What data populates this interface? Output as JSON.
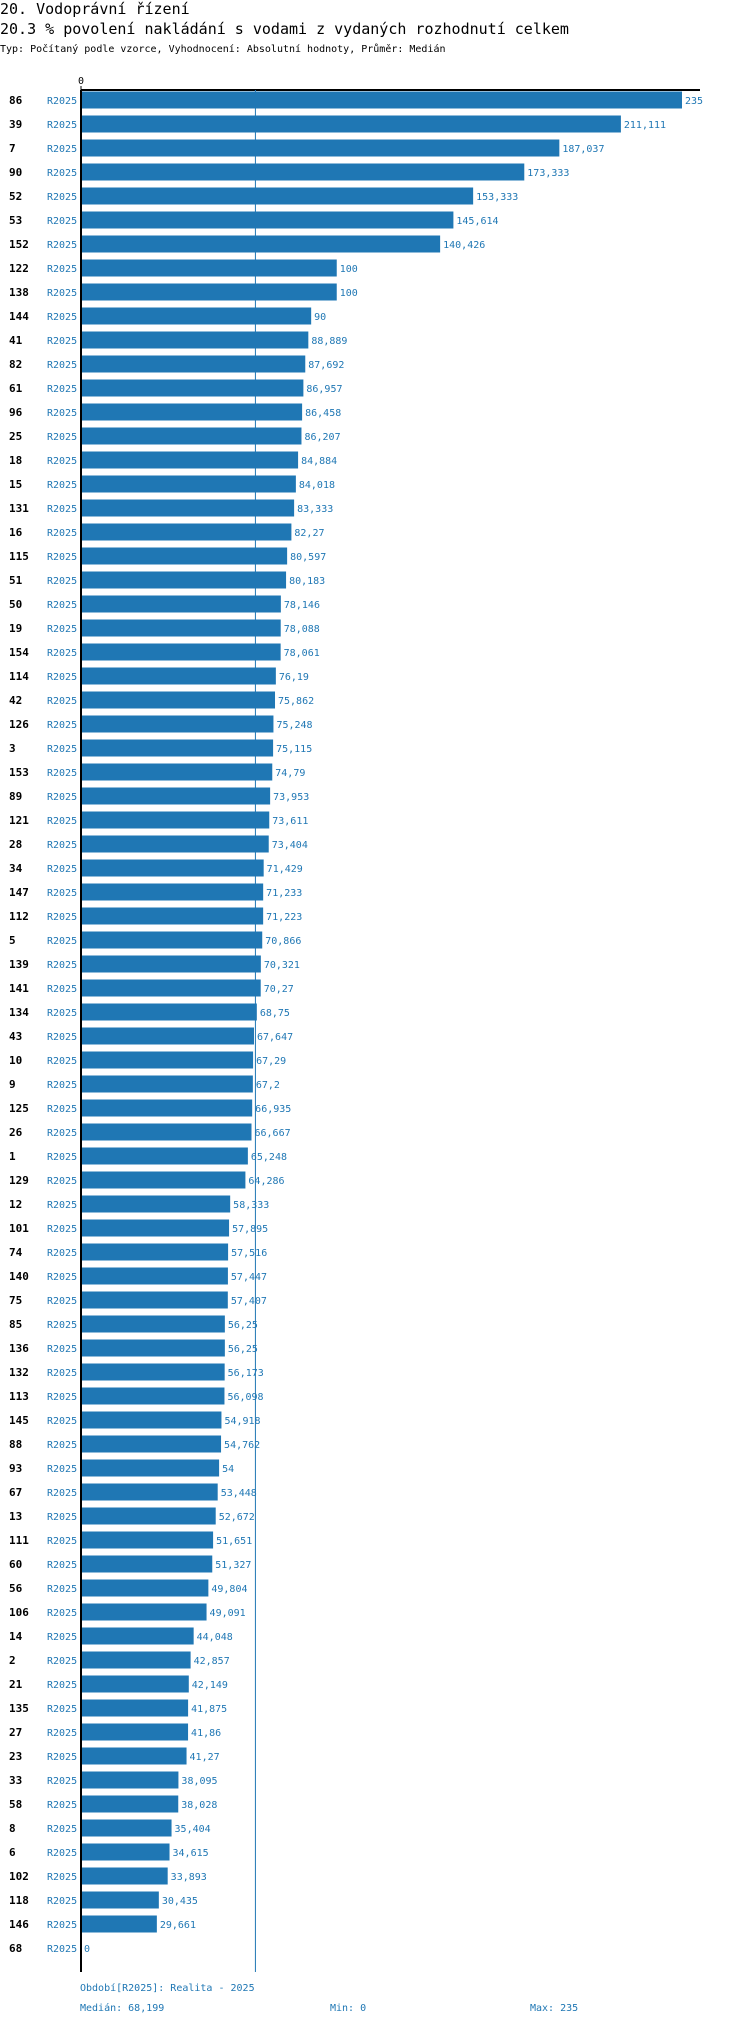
{
  "header": {
    "title": "20. Vodoprávní řízení",
    "subtitle": "20.3 % povolení nakládání s vodami z vydaných rozhodnutí celkem",
    "info": "Typ: Počítaný podle vzorce, Vyhodnocení: Absolutní hodnoty, Průměr: Medián"
  },
  "colors": {
    "bar": "#1f77b4",
    "median_line": "#1f77b4",
    "axis": "#000000",
    "period_label": "#1f77b4"
  },
  "chart_data": {
    "type": "bar",
    "orientation": "horizontal",
    "series_label": "R2025",
    "xlim": [
      0,
      235
    ],
    "axis_tick_label": "0",
    "categories": [
      "86",
      "39",
      "7",
      "90",
      "52",
      "53",
      "152",
      "122",
      "138",
      "144",
      "41",
      "82",
      "61",
      "96",
      "25",
      "18",
      "15",
      "131",
      "16",
      "115",
      "51",
      "50",
      "19",
      "154",
      "114",
      "42",
      "126",
      "3",
      "153",
      "89",
      "121",
      "28",
      "34",
      "147",
      "112",
      "5",
      "139",
      "141",
      "134",
      "43",
      "10",
      "9",
      "125",
      "26",
      "1",
      "129",
      "12",
      "101",
      "74",
      "140",
      "75",
      "85",
      "136",
      "132",
      "113",
      "145",
      "88",
      "93",
      "67",
      "13",
      "111",
      "60",
      "56",
      "106",
      "14",
      "2",
      "21",
      "135",
      "27",
      "23",
      "33",
      "58",
      "8",
      "6",
      "102",
      "118",
      "146",
      "68"
    ],
    "values": [
      235,
      211.111,
      187.037,
      173.333,
      153.333,
      145.614,
      140.426,
      100,
      100,
      90,
      88.889,
      87.692,
      86.957,
      86.458,
      86.207,
      84.884,
      84.018,
      83.333,
      82.27,
      80.597,
      80.183,
      78.146,
      78.088,
      78.061,
      76.19,
      75.862,
      75.248,
      75.115,
      74.79,
      73.953,
      73.611,
      73.404,
      71.429,
      71.233,
      71.223,
      70.866,
      70.321,
      70.27,
      68.75,
      67.647,
      67.29,
      67.2,
      66.935,
      66.667,
      65.248,
      64.286,
      58.333,
      57.895,
      57.516,
      57.447,
      57.407,
      56.25,
      56.25,
      56.173,
      56.098,
      54.918,
      54.762,
      54,
      53.448,
      52.672,
      51.651,
      51.327,
      49.804,
      49.091,
      44.048,
      42.857,
      42.149,
      41.875,
      41.86,
      41.27,
      38.095,
      38.028,
      35.404,
      34.615,
      33.893,
      30.435,
      29.661,
      0
    ],
    "value_labels": [
      "235",
      "211,111",
      "187,037",
      "173,333",
      "153,333",
      "145,614",
      "140,426",
      "100",
      "100",
      "90",
      "88,889",
      "87,692",
      "86,957",
      "86,458",
      "86,207",
      "84,884",
      "84,018",
      "83,333",
      "82,27",
      "80,597",
      "80,183",
      "78,146",
      "78,088",
      "78,061",
      "76,19",
      "75,862",
      "75,248",
      "75,115",
      "74,79",
      "73,953",
      "73,611",
      "73,404",
      "71,429",
      "71,233",
      "71,223",
      "70,866",
      "70,321",
      "70,27",
      "68,75",
      "67,647",
      "67,29",
      "67,2",
      "66,935",
      "66,667",
      "65,248",
      "64,286",
      "58,333",
      "57,895",
      "57,516",
      "57,447",
      "57,407",
      "56,25",
      "56,25",
      "56,173",
      "56,098",
      "54,918",
      "54,762",
      "54",
      "53,448",
      "52,672",
      "51,651",
      "51,327",
      "49,804",
      "49,091",
      "44,048",
      "42,857",
      "42,149",
      "41,875",
      "41,86",
      "41,27",
      "38,095",
      "38,028",
      "35,404",
      "34,615",
      "33,893",
      "30,435",
      "29,661",
      "0"
    ],
    "median": 68.199
  },
  "footer": {
    "period": "Období[R2025]: Realita - 2025",
    "median": "Medián: 68,199",
    "min": "Min: 0",
    "max": "Max: 235"
  }
}
